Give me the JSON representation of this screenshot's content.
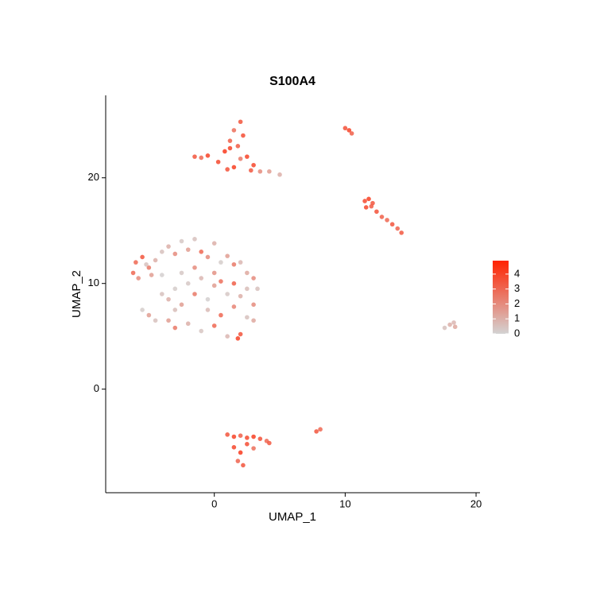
{
  "chart_data": {
    "type": "scatter",
    "title": "S100A4",
    "x_label": "UMAP_1",
    "y_label": "UMAP_2",
    "xlim": [
      -8.3,
      20.3
    ],
    "ylim": [
      -9.8,
      27.8
    ],
    "xticks": [
      0,
      10,
      20
    ],
    "yticks": [
      0,
      10,
      20
    ],
    "grid": false,
    "color_low": "#d3d3d3",
    "color_high": "#ff2200",
    "color_lim": [
      0,
      4.9
    ],
    "color_ticks": [
      0,
      1,
      2,
      3,
      4
    ],
    "x": [
      -6,
      -5.5,
      -5,
      -4.5,
      -6.2,
      -5.8,
      -5.2,
      -4.8,
      -4,
      -3.5,
      -3,
      -2.5,
      -2,
      -1.5,
      -1,
      -0.5,
      0,
      0.5,
      1,
      1.5,
      2,
      2.5,
      3,
      3.3,
      -4,
      -3.5,
      -3,
      -2.5,
      -2,
      -1.5,
      -1,
      -0.5,
      0,
      0.5,
      1,
      1.5,
      2,
      2.5,
      3,
      -3.5,
      -3,
      -2,
      -1,
      0,
      1,
      2,
      3,
      -5.5,
      -5,
      -4.5,
      -2.5,
      -1.5,
      -0.5,
      0.5,
      1.5,
      2.5,
      -4,
      -3,
      0,
      1.8,
      -1.5,
      -1,
      -0.5,
      0.3,
      0.8,
      1.2,
      1.5,
      2,
      2.5,
      3,
      1,
      1.5,
      2,
      1.8,
      2.2,
      1.2,
      2.8,
      3.5,
      4.2,
      5,
      1,
      1.5,
      2,
      2.5,
      3,
      3.5,
      4,
      4.2,
      1.5,
      2,
      2.5,
      1.8,
      2.2,
      3,
      7.8,
      8.1,
      10,
      10.3,
      10.5,
      11.5,
      11.8,
      12.1,
      11.6,
      12,
      12.4,
      12.8,
      13.2,
      13.6,
      14,
      14.3,
      17.6,
      18,
      18.3,
      18.4
    ],
    "values": [
      12,
      12.5,
      11.5,
      12.2,
      11,
      10.5,
      11.8,
      10.8,
      13,
      13.5,
      12.8,
      14,
      13.2,
      14.2,
      13,
      12.5,
      13.8,
      12,
      12.6,
      11.8,
      12,
      11,
      10.5,
      9.5,
      9,
      8.5,
      9.5,
      8,
      10,
      9,
      10.5,
      8.5,
      9.8,
      10.2,
      9,
      10,
      8.8,
      9.5,
      8,
      6.5,
      5.8,
      6.2,
      5.5,
      6,
      5,
      5.2,
      6.5,
      7.5,
      7,
      6.5,
      11,
      11.5,
      7.5,
      7,
      7.8,
      6.8,
      10.8,
      7.5,
      11,
      4.8,
      22,
      21.9,
      22.1,
      21.5,
      22.5,
      23.5,
      24.5,
      25.3,
      22,
      21.2,
      20.8,
      21,
      21.8,
      23,
      24,
      22.8,
      20.7,
      20.6,
      20.6,
      20.3,
      -4.3,
      -4.5,
      -4.4,
      -4.6,
      -4.5,
      -4.7,
      -4.9,
      -5.1,
      -5.5,
      -6,
      -5.2,
      -6.8,
      -7.2,
      -5.6,
      -4,
      -3.8,
      24.7,
      24.5,
      24.2,
      17.8,
      18,
      17.6,
      17.2,
      17.3,
      16.8,
      16.3,
      16,
      15.6,
      15.2,
      14.8,
      5.8,
      6.1,
      6.3,
      5.9
    ],
    "expression": [
      3,
      3.5,
      2.5,
      1,
      3,
      2,
      0.5,
      1.5,
      0.5,
      1,
      2,
      0.3,
      1.5,
      0.5,
      3,
      2,
      1,
      0.2,
      1.5,
      2.5,
      0.8,
      1.2,
      2,
      0.5,
      0.5,
      1,
      0.2,
      1.5,
      0.3,
      2.5,
      0.8,
      0.1,
      1.5,
      2.8,
      0.3,
      3.2,
      1,
      0.6,
      2,
      1.5,
      2.5,
      1,
      0.4,
      3,
      0.8,
      3.5,
      1.2,
      0.2,
      1.5,
      0.5,
      0.3,
      2,
      0.7,
      3,
      2.2,
      0.5,
      0.1,
      0.6,
      1.8,
      4,
      3.5,
      3,
      4,
      3.8,
      4.2,
      3.2,
      2.8,
      3.5,
      4,
      3.9,
      3.6,
      4.1,
      2.5,
      3.3,
      3.7,
      4,
      3.4,
      2,
      1.5,
      1,
      3.5,
      4,
      3.2,
      3.8,
      4.1,
      3.6,
      3,
      3.4,
      3.9,
      4.2,
      3.7,
      3.1,
      3.5,
      2.8,
      3.5,
      3,
      3.6,
      4,
      3.2,
      3.8,
      4.1,
      3.5,
      3.9,
      3.3,
      3.6,
      3.2,
      3,
      3.5,
      3.1,
      3.4,
      0.5,
      1,
      0.8,
      1.2
    ]
  }
}
